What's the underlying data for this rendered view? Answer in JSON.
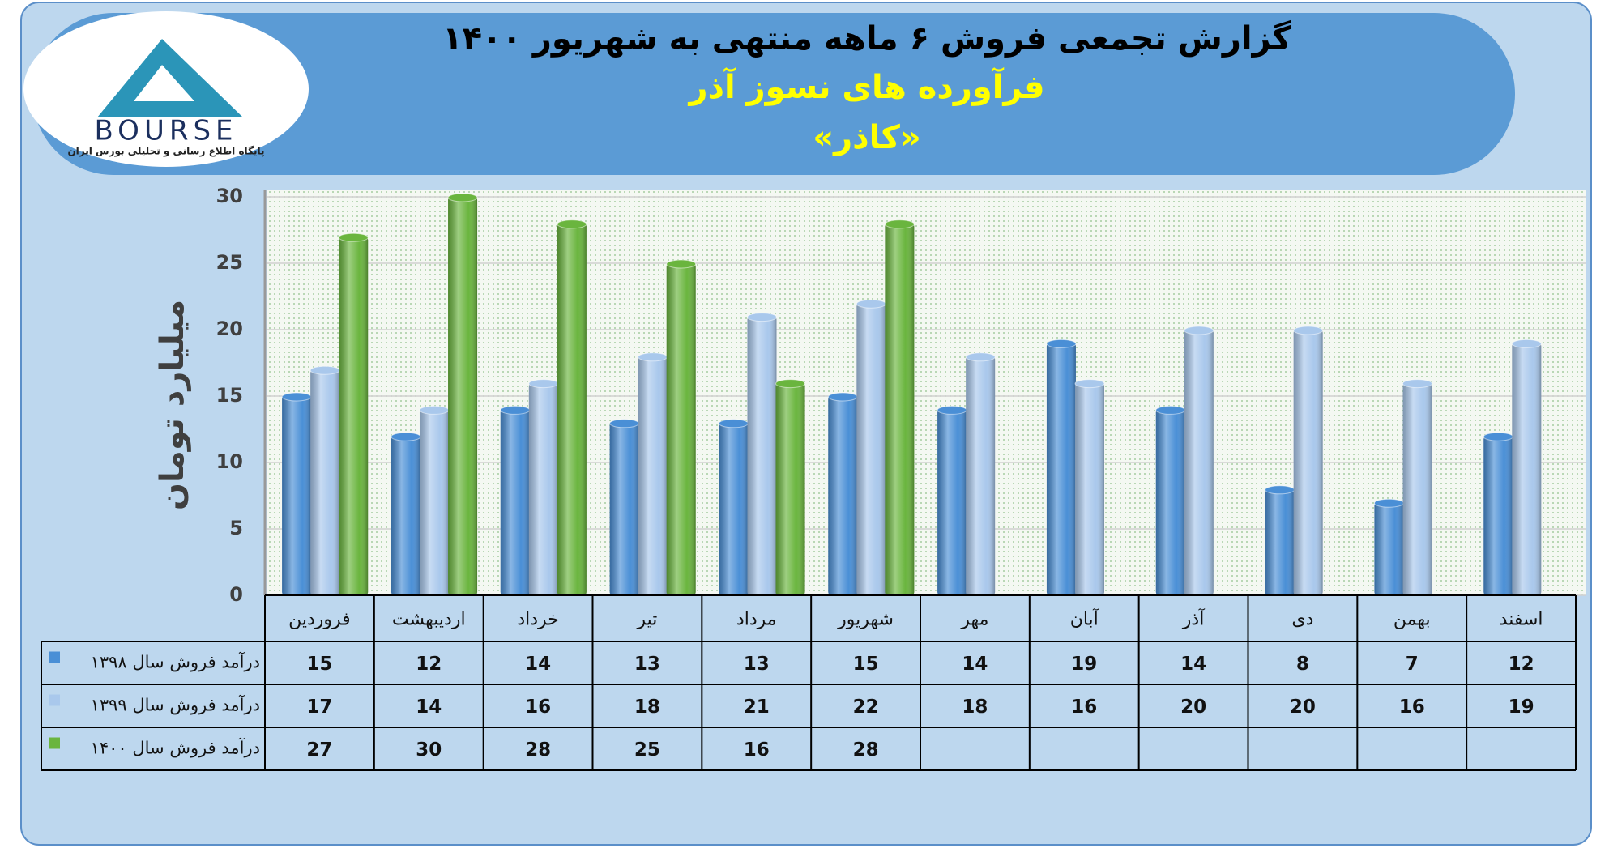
{
  "chart_data": {
    "type": "bar",
    "title": "گزارش تجمعی فروش ۶ ماهه منتهی به شهریور ۱۴۰۰",
    "subtitle": "فرآورده های نسوز آذر",
    "annotation": "«کاذر»",
    "y_label": "میلیارد تومان",
    "categories": [
      "فروردین",
      "اردیبهشت",
      "خرداد",
      "تیر",
      "مرداد",
      "شهریور",
      "مهر",
      "آبان",
      "آذر",
      "دی",
      "بهمن",
      "اسفند"
    ],
    "series": [
      {
        "name": "درآمد فروش سال ۱۳۹۸",
        "color": "#4a8fd6",
        "values": [
          15,
          12,
          14,
          13,
          13,
          15,
          14,
          19,
          14,
          8,
          7,
          12
        ]
      },
      {
        "name": "درآمد فروش سال ۱۳۹۹",
        "color": "#a9c8ec",
        "values": [
          17,
          14,
          16,
          18,
          21,
          22,
          18,
          16,
          20,
          20,
          16,
          19
        ]
      },
      {
        "name": "درآمد فروش سال ۱۴۰۰",
        "color": "#6ab53e",
        "values": [
          27,
          30,
          28,
          25,
          16,
          28,
          null,
          null,
          null,
          null,
          null,
          null
        ]
      }
    ],
    "ylim": [
      0,
      30
    ],
    "yticks": [
      0,
      5,
      10,
      15,
      20,
      25,
      30
    ],
    "grid": true
  },
  "logo": {
    "name": "BOURSE",
    "tagline": "پایگاه اطلاع رسانی و تحلیلی بورس ایران"
  }
}
